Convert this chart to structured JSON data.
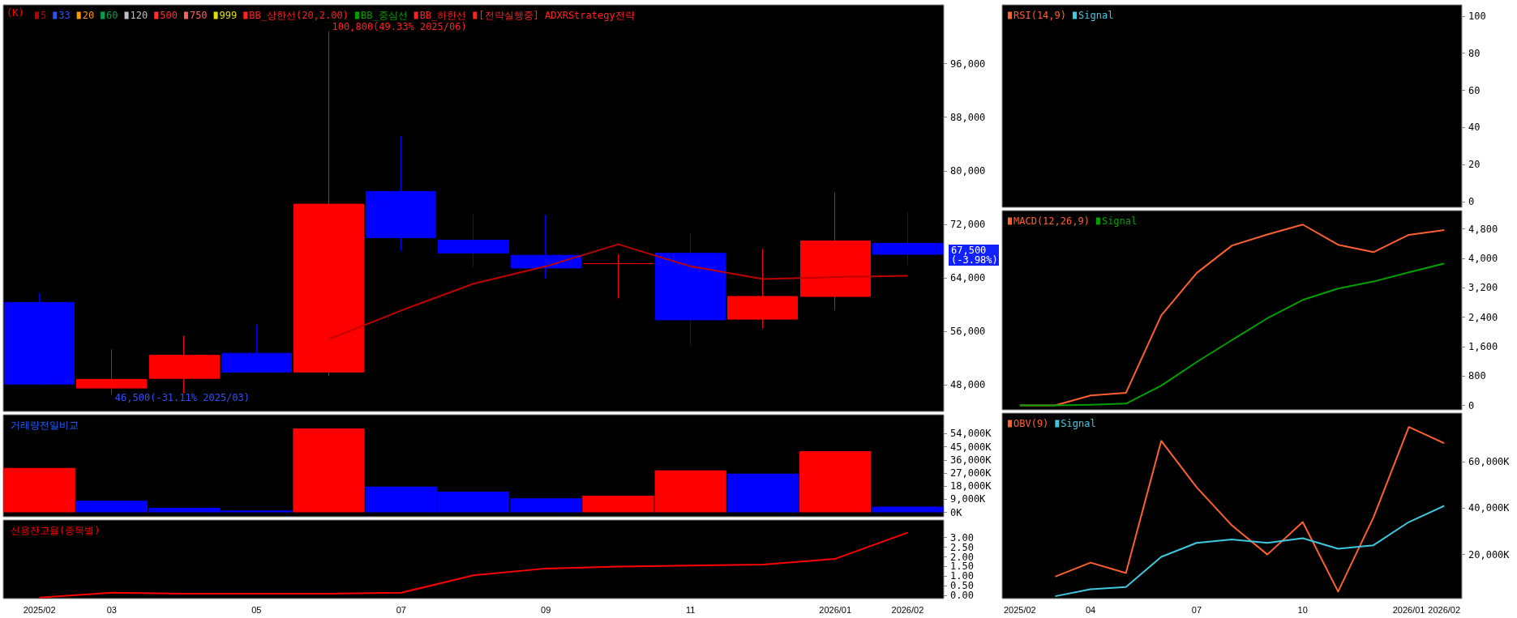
{
  "chart_data": [
    {
      "type": "candlestick",
      "legend_title": "(K)",
      "categories": [
        "2025/02",
        "03",
        null,
        "05",
        null,
        "07",
        null,
        "09",
        null,
        "11",
        null,
        "2026/01",
        "2026/02"
      ],
      "ohlc": [
        [
          60300,
          61700,
          48000,
          48100
        ],
        [
          47500,
          53300,
          46500,
          48800
        ],
        [
          48950,
          55300,
          46700,
          52400
        ],
        [
          52700,
          57000,
          49900,
          49900
        ],
        [
          49900,
          100800,
          49300,
          75000
        ],
        [
          76900,
          85200,
          68000,
          70000
        ],
        [
          69600,
          73500,
          65600,
          67700
        ],
        [
          67350,
          73400,
          63850,
          65450
        ],
        [
          66100,
          67500,
          60900,
          66100
        ],
        [
          67650,
          70700,
          53800,
          57700
        ],
        [
          57800,
          68300,
          56450,
          61200
        ],
        [
          61200,
          76800,
          59100,
          69500
        ],
        [
          69150,
          73800,
          65900,
          67500
        ]
      ],
      "colors": [
        "#0000ff",
        "#ff0000",
        "#ff0000",
        "#0000ff",
        "#ff0000",
        "#0000ff",
        "#0000ff",
        "#0000ff",
        "#ff0000",
        "#0000ff",
        "#ff0000",
        "#ff0000",
        "#0000ff"
      ],
      "series": [
        {
          "type": "line",
          "name": "5",
          "color": "#c00000",
          "values": [
            null,
            null,
            null,
            null,
            54800,
            59100,
            63100,
            65700,
            69000,
            65700,
            63800,
            64100,
            64300
          ]
        },
        {
          "type": "line",
          "name": "33",
          "color": "#3050ff",
          "values": [
            null,
            null,
            null,
            null,
            null,
            null,
            null,
            null,
            null,
            null,
            null,
            null,
            null
          ]
        },
        {
          "type": "line",
          "name": "20",
          "color": "#ff9900",
          "values": [
            null,
            null,
            null,
            null,
            null,
            null,
            null,
            null,
            null,
            null,
            null,
            null,
            null
          ]
        },
        {
          "type": "line",
          "name": "60",
          "color": "#00a050",
          "values": [
            null,
            null,
            null,
            null,
            null,
            null,
            null,
            null,
            null,
            null,
            null,
            null,
            null
          ]
        },
        {
          "type": "line",
          "name": "120",
          "color": "#c0c0c0",
          "values": [
            null,
            null,
            null,
            null,
            null,
            null,
            null,
            null,
            null,
            null,
            null,
            null,
            null
          ]
        },
        {
          "type": "line",
          "name": "500",
          "color": "#ff3030",
          "values": [
            null,
            null,
            null,
            null,
            null,
            null,
            null,
            null,
            null,
            null,
            null,
            null,
            null
          ]
        },
        {
          "type": "line",
          "name": "750",
          "color": "#ff6060",
          "values": [
            null,
            null,
            null,
            null,
            null,
            null,
            null,
            null,
            null,
            null,
            null,
            null,
            null
          ]
        },
        {
          "type": "line",
          "name": "999",
          "color": "#e0e000",
          "values": [
            null,
            null,
            null,
            null,
            null,
            null,
            null,
            null,
            null,
            null,
            null,
            null,
            null
          ]
        },
        {
          "type": "line",
          "name": "BB_상한선(20,2.00)",
          "color": "#ff2020",
          "values": [
            null,
            null,
            null,
            null,
            null,
            null,
            null,
            null,
            null,
            null,
            null,
            null,
            null
          ]
        },
        {
          "type": "line",
          "name": "BB_중심선",
          "color": "#00a000",
          "values": [
            null,
            null,
            null,
            null,
            null,
            null,
            null,
            null,
            null,
            null,
            null,
            null,
            null
          ]
        },
        {
          "type": "line",
          "name": "BB_하한선",
          "color": "#ff2020",
          "values": [
            null,
            null,
            null,
            null,
            null,
            null,
            null,
            null,
            null,
            null,
            null,
            null,
            null
          ]
        },
        {
          "type": "line",
          "name": "[전략실행중] ADXRStrategy전략",
          "color": "#ff2020",
          "values": [
            null,
            null,
            null,
            null,
            null,
            null,
            null,
            null,
            null,
            null,
            null,
            null,
            null
          ]
        }
      ],
      "annotations": [
        "100,800(49.33% 2025/06)",
        {
          "text": "46,500(-31.11% 2025/03)",
          "y": 46500
        },
        "67,500\n(-3.98%)"
      ],
      "ylim": [
        44000,
        104800
      ],
      "yticks": [
        {
          "value": 48000,
          "label": "48,000"
        },
        {
          "value": 56000,
          "label": "56,000"
        },
        {
          "value": 64000,
          "label": "64,000"
        },
        {
          "value": 72000,
          "label": "72,000"
        },
        {
          "value": 80000,
          "label": "80,000"
        },
        {
          "value": 88000,
          "label": "88,000"
        },
        {
          "value": 96000,
          "label": "96,000"
        }
      ],
      "tick_labels": "y",
      "grid": false,
      "legend": "top left",
      "marker": "none",
      "line_style": "solid"
    },
    {
      "type": "bar",
      "title": "거래량전일비교",
      "categories": [
        "2025/02",
        "03",
        null,
        "05",
        null,
        "07",
        null,
        "09",
        null,
        "11",
        null,
        "2026/01",
        "2026/02"
      ],
      "values": [
        30500,
        8000,
        3100,
        1300,
        57500,
        17700,
        14200,
        9700,
        11500,
        28800,
        26600,
        42000,
        4000
      ],
      "colors": [
        "#ff0000",
        "#0000ff",
        "#0000ff",
        "#0000ff",
        "#ff0000",
        "#0000ff",
        "#0000ff",
        "#0000ff",
        "#ff0000",
        "#ff0000",
        "#0000ff",
        "#ff0000",
        "#0000ff"
      ],
      "ylim": [
        -3000,
        67000
      ],
      "yticks": [
        {
          "value": 0,
          "label": "0K"
        },
        {
          "value": 9000,
          "label": "9,000K"
        },
        {
          "value": 18000,
          "label": "18,000K"
        },
        {
          "value": 27000,
          "label": "27,000K"
        },
        {
          "value": 36000,
          "label": "36,000K"
        },
        {
          "value": 45000,
          "label": "45,000K"
        },
        {
          "value": 54000,
          "label": "54,000K"
        }
      ],
      "tick_labels": "y",
      "grid": false
    },
    {
      "type": "line",
      "title": "신용잔고율(종목별)",
      "color": "#ff0000",
      "categories": [
        "2025/02",
        "03",
        null,
        "05",
        null,
        "07",
        null,
        "09",
        null,
        "11",
        null,
        "2026/01",
        "2026/02"
      ],
      "values": [
        -0.1,
        0.15,
        0.1,
        0.1,
        0.1,
        0.15,
        1.05,
        1.4,
        1.5,
        1.55,
        1.6,
        1.9,
        3.25
      ],
      "ylim": [
        -0.15,
        3.9
      ],
      "yticks": [
        {
          "value": 0,
          "label": "0.00"
        },
        {
          "value": 0.5,
          "label": "0.50"
        },
        {
          "value": 1,
          "label": "1.00"
        },
        {
          "value": 1.5,
          "label": "1.50"
        },
        {
          "value": 2,
          "label": "2.00"
        },
        {
          "value": 2.5,
          "label": "2.50"
        },
        {
          "value": 3,
          "label": "3.00"
        }
      ],
      "grid": false,
      "marker": "none",
      "line_style": "solid"
    },
    {
      "type": "line",
      "categories": [
        "2025/02",
        null,
        "04",
        null,
        null,
        "07",
        null,
        null,
        "10",
        null,
        null,
        "2026/01",
        "2026/02"
      ],
      "series": [
        {
          "name": "RSI(14,9)",
          "color": "#ff6030",
          "values": [
            null,
            null,
            null,
            null,
            null,
            null,
            null,
            null,
            null,
            null,
            null,
            null,
            null
          ]
        },
        {
          "name": "Signal",
          "color": "#40c8e0",
          "values": [
            null,
            null,
            null,
            null,
            null,
            null,
            null,
            null,
            null,
            null,
            null,
            null,
            null
          ]
        }
      ],
      "ylim": [
        -3,
        106
      ],
      "yticks": [
        0,
        20,
        40,
        60,
        80,
        100
      ],
      "tick_labels": "y",
      "grid": false,
      "legend": "top left",
      "marker": "none",
      "line_style": "solid"
    },
    {
      "type": "line",
      "categories": [
        "2025/02",
        null,
        "04",
        null,
        null,
        "07",
        null,
        null,
        "10",
        null,
        null,
        "2026/01",
        "2026/02"
      ],
      "series": [
        {
          "name": "MACD(12,26,9)",
          "color": "#ff6030",
          "values": [
            0,
            0,
            270,
            340,
            2450,
            3600,
            4350,
            4650,
            4920,
            4370,
            4170,
            4640,
            4770
          ]
        },
        {
          "name": "Signal",
          "color": "#00a000",
          "values": [
            0,
            0,
            20,
            50,
            540,
            1180,
            1780,
            2370,
            2870,
            3180,
            3370,
            3620,
            3860
          ]
        }
      ],
      "ylim": [
        -120,
        5300
      ],
      "yticks": [
        0,
        {
          "value": 800,
          "label": "800"
        },
        {
          "value": 1600,
          "label": "1,600"
        },
        {
          "value": 2400,
          "label": "2,400"
        },
        {
          "value": 3200,
          "label": "3,200"
        },
        {
          "value": 4000,
          "label": "4,000"
        },
        {
          "value": 4800,
          "label": "4,800"
        }
      ],
      "tick_labels": "y",
      "grid": false,
      "legend": "top left",
      "marker": "none",
      "line_style": "solid"
    },
    {
      "type": "line",
      "categories": [
        "2025/02",
        null,
        "04",
        null,
        null,
        "07",
        null,
        null,
        "10",
        null,
        null,
        "2026/01",
        "2026/02"
      ],
      "series": [
        {
          "name": "OBV(9)",
          "color": "#ff6030",
          "values": [
            null,
            10500,
            16500,
            12000,
            69000,
            49000,
            32500,
            20000,
            34000,
            4000,
            36000,
            75000,
            68000
          ]
        },
        {
          "name": "Signal",
          "color": "#40c8e0",
          "values": [
            null,
            2000,
            5000,
            6000,
            19000,
            25000,
            26500,
            25000,
            27000,
            22500,
            24000,
            34000,
            41000
          ]
        }
      ],
      "ylim": [
        1000,
        81000
      ],
      "yticks": [
        {
          "value": 20000,
          "label": "20,000K"
        },
        {
          "value": 40000,
          "label": "40,000K"
        },
        {
          "value": 60000,
          "label": "60,000K"
        }
      ],
      "grid": false,
      "legend": "top left",
      "marker": "none",
      "line_style": "solid"
    }
  ]
}
